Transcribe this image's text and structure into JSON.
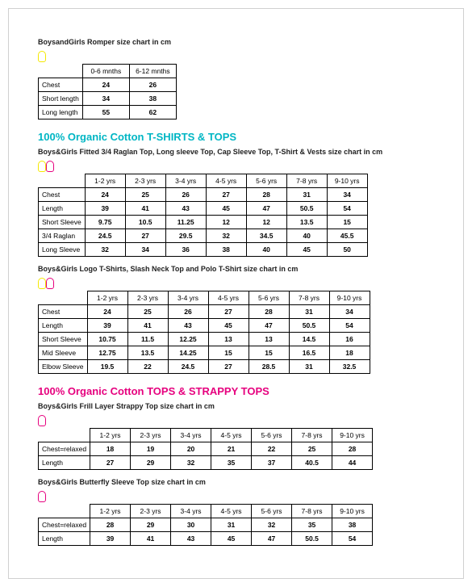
{
  "colors": {
    "teal": "#00b6c4",
    "magenta": "#e6007e",
    "yellow_icon": "#f5e800",
    "text": "#222222",
    "border": "#000000"
  },
  "romper": {
    "title": "BoysandGirls Romper size chart in cm",
    "columns": [
      "0-6 mnths",
      "6-12 mnths"
    ],
    "rows": [
      {
        "label": "Chest",
        "values": [
          "24",
          "26"
        ]
      },
      {
        "label": "Short length",
        "values": [
          "34",
          "38"
        ]
      },
      {
        "label": "Long length",
        "values": [
          "55",
          "62"
        ]
      }
    ]
  },
  "heading_tshirts": "100% Organic Cotton T-SHIRTS & TOPS",
  "tshirts1": {
    "title": "Boys&Girls Fitted 3/4 Raglan Top, Long sleeve Top, Cap Sleeve Top, T-Shirt & Vests size chart in cm",
    "columns": [
      "1-2 yrs",
      "2-3 yrs",
      "3-4 yrs",
      "4-5 yrs",
      "5-6 yrs",
      "7-8 yrs",
      "9-10 yrs"
    ],
    "rows": [
      {
        "label": "Chest",
        "values": [
          "24",
          "25",
          "26",
          "27",
          "28",
          "31",
          "34"
        ]
      },
      {
        "label": "Length",
        "values": [
          "39",
          "41",
          "43",
          "45",
          "47",
          "50.5",
          "54"
        ]
      },
      {
        "label": "Short Sleeve",
        "values": [
          "9.75",
          "10.5",
          "11.25",
          "12",
          "12",
          "13.5",
          "15"
        ]
      },
      {
        "label": "3/4 Raglan",
        "values": [
          "24.5",
          "27",
          "29.5",
          "32",
          "34.5",
          "40",
          "45.5"
        ]
      },
      {
        "label": "Long Sleeve",
        "values": [
          "32",
          "34",
          "36",
          "38",
          "40",
          "45",
          "50"
        ]
      }
    ]
  },
  "tshirts2": {
    "title": "Boys&Girls Logo T-Shirts, Slash Neck Top and Polo T-Shirt size chart in cm",
    "columns": [
      "1-2 yrs",
      "2-3 yrs",
      "3-4 yrs",
      "4-5 yrs",
      "5-6 yrs",
      "7-8 yrs",
      "9-10 yrs"
    ],
    "rows": [
      {
        "label": "Chest",
        "values": [
          "24",
          "25",
          "26",
          "27",
          "28",
          "31",
          "34"
        ]
      },
      {
        "label": "Length",
        "values": [
          "39",
          "41",
          "43",
          "45",
          "47",
          "50.5",
          "54"
        ]
      },
      {
        "label": "Short Sleeve",
        "values": [
          "10.75",
          "11.5",
          "12.25",
          "13",
          "13",
          "14.5",
          "16"
        ]
      },
      {
        "label": "Mid Sleeve",
        "values": [
          "12.75",
          "13.5",
          "14.25",
          "15",
          "15",
          "16.5",
          "18"
        ]
      },
      {
        "label": "Elbow Sleeve",
        "values": [
          "19.5",
          "22",
          "24.5",
          "27",
          "28.5",
          "31",
          "32.5"
        ]
      }
    ]
  },
  "heading_strappy": "100% Organic Cotton TOPS & STRAPPY TOPS",
  "strappy1": {
    "title": "Boys&Girls Frill Layer Strappy Top size chart in cm",
    "columns": [
      "1-2 yrs",
      "2-3 yrs",
      "3-4 yrs",
      "4-5 yrs",
      "5-6 yrs",
      "7-8 yrs",
      "9-10 yrs"
    ],
    "rows": [
      {
        "label": "Chest=relaxed",
        "values": [
          "18",
          "19",
          "20",
          "21",
          "22",
          "25",
          "28"
        ]
      },
      {
        "label": "Length",
        "values": [
          "27",
          "29",
          "32",
          "35",
          "37",
          "40.5",
          "44"
        ]
      }
    ]
  },
  "strappy2": {
    "title": "Boys&Girls Butterfly Sleeve Top size chart in cm",
    "columns": [
      "1-2 yrs",
      "2-3 yrs",
      "3-4 yrs",
      "4-5 yrs",
      "5-6 yrs",
      "7-8 yrs",
      "9-10 yrs"
    ],
    "rows": [
      {
        "label": "Chest=relaxed",
        "values": [
          "28",
          "29",
          "30",
          "31",
          "32",
          "35",
          "38"
        ]
      },
      {
        "label": "Length",
        "values": [
          "39",
          "41",
          "43",
          "45",
          "47",
          "50.5",
          "54"
        ]
      }
    ]
  }
}
